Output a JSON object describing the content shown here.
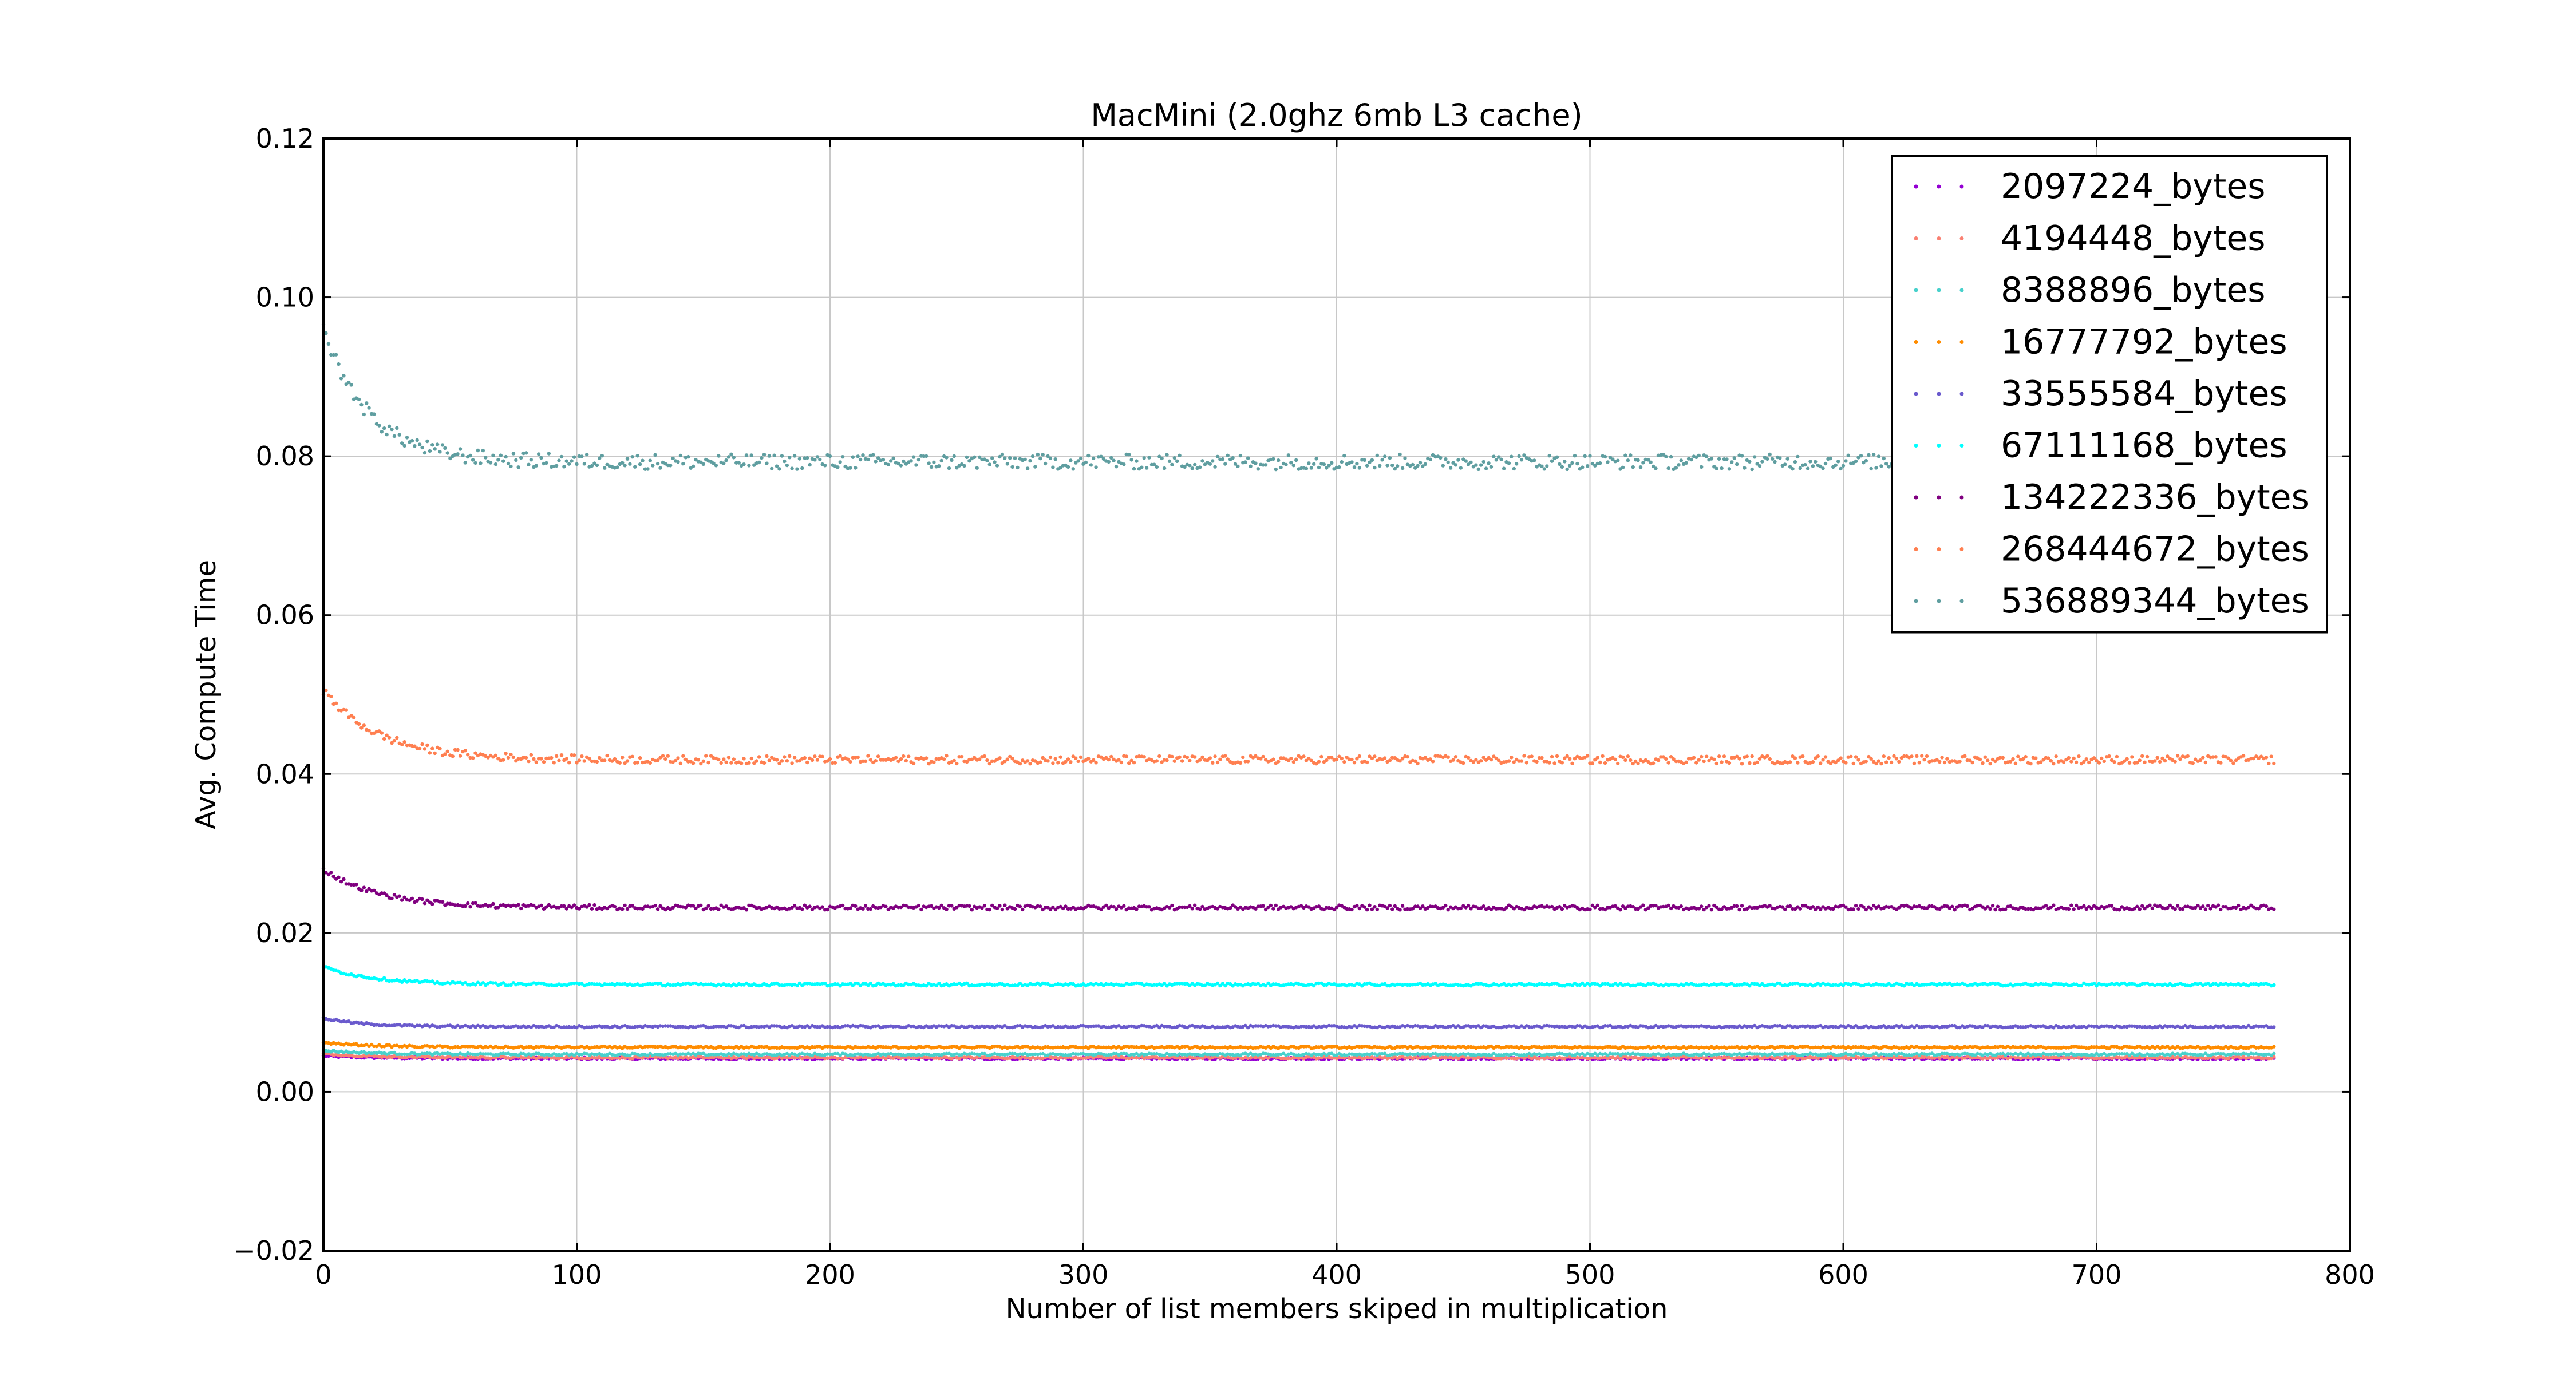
{
  "chart_data": {
    "type": "scatter",
    "title": "MacMini (2.0ghz 6mb L3 cache)",
    "xlabel": "Number of list members skiped in multiplication",
    "ylabel": "Avg. Compute Time",
    "xlim": [
      0,
      800
    ],
    "ylim": [
      -0.02,
      0.12
    ],
    "xticks": [
      0,
      100,
      200,
      300,
      400,
      500,
      600,
      700,
      800
    ],
    "xtick_labels": [
      "0",
      "100",
      "200",
      "300",
      "400",
      "500",
      "600",
      "700",
      "800"
    ],
    "yticks": [
      -0.02,
      0.0,
      0.02,
      0.04,
      0.06,
      0.08,
      0.1,
      0.12
    ],
    "ytick_labels": [
      "−0.02",
      "0.00",
      "0.02",
      "0.04",
      "0.06",
      "0.08",
      "0.10",
      "0.12"
    ],
    "grid": true,
    "legend_position": "top-right",
    "x_range_points": [
      0,
      770
    ],
    "series": [
      {
        "name": "2097224_bytes",
        "color": "#9400d3",
        "start": 0.0045,
        "plateau": 0.0042,
        "decay": 20
      },
      {
        "name": "4194448_bytes",
        "color": "#fa8072",
        "start": 0.0048,
        "plateau": 0.0043,
        "decay": 20
      },
      {
        "name": "8388896_bytes",
        "color": "#48d1cc",
        "start": 0.0052,
        "plateau": 0.0047,
        "decay": 20
      },
      {
        "name": "16777792_bytes",
        "color": "#ff8c00",
        "start": 0.0062,
        "plateau": 0.0056,
        "decay": 20
      },
      {
        "name": "33555584_bytes",
        "color": "#6a5acd",
        "start": 0.0093,
        "plateau": 0.0082,
        "decay": 15
      },
      {
        "name": "67111168_bytes",
        "color": "#00ffff",
        "start": 0.0157,
        "plateau": 0.0135,
        "decay": 20
      },
      {
        "name": "134222336_bytes",
        "color": "#800080",
        "start": 0.028,
        "plateau": 0.0232,
        "decay": 22
      },
      {
        "name": "268444672_bytes",
        "color": "#ff7f50",
        "start": 0.0505,
        "plateau": 0.0418,
        "decay": 22
      },
      {
        "name": "536889344_bytes",
        "color": "#5f9ea0",
        "start": 0.096,
        "plateau": 0.0793,
        "decay": 18
      }
    ]
  }
}
